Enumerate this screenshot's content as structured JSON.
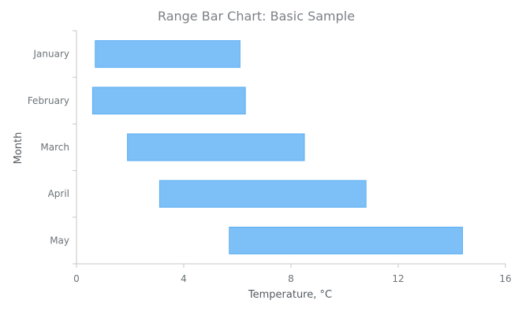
{
  "chart_data": {
    "type": "bar",
    "orientation": "horizontal-range",
    "title": "Range Bar Chart: Basic Sample",
    "xlabel": "Temperature, °C",
    "ylabel": "Month",
    "xlim": [
      0,
      16
    ],
    "xticks": [
      "0",
      "4",
      "8",
      "12",
      "16"
    ],
    "categories": [
      "January",
      "February",
      "March",
      "April",
      "May"
    ],
    "series": [
      {
        "ranges": [
          {
            "low": 0.7,
            "high": 6.1
          },
          {
            "low": 0.6,
            "high": 6.3
          },
          {
            "low": 1.9,
            "high": 8.5
          },
          {
            "low": 3.1,
            "high": 10.8
          },
          {
            "low": 5.7,
            "high": 14.4
          }
        ]
      }
    ],
    "grid": false,
    "colors": {
      "bar_fill": "#7dbff7",
      "bar_stroke": "#5aaef0"
    }
  }
}
